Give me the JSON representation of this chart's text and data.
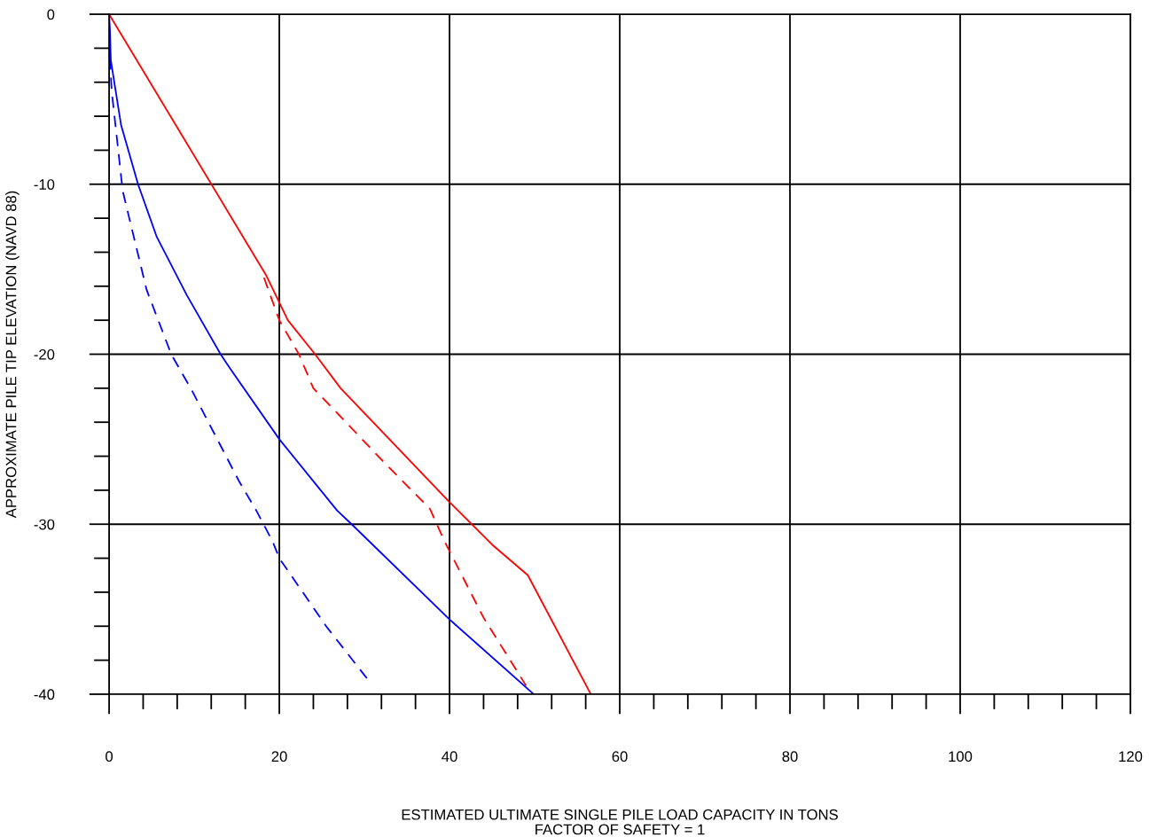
{
  "chart_data": {
    "type": "line",
    "xlabel": "ESTIMATED ULTIMATE SINGLE PILE LOAD CAPACITY IN TONS\nFACTOR OF SAFETY = 1",
    "ylabel": "APPROXIMATE PILE TIP ELEVATION (NAVD 88)",
    "xlim": [
      0,
      120
    ],
    "ylim": [
      -40,
      0
    ],
    "xticks": [
      0,
      {
        "value": 4,
        "label": null
      },
      {
        "value": 8,
        "label": null
      },
      {
        "value": 12,
        "label": null
      },
      {
        "value": 16,
        "label": null
      },
      20,
      {
        "value": 24,
        "label": null
      },
      {
        "value": 28,
        "label": null
      },
      {
        "value": 32,
        "label": null
      },
      {
        "value": 36,
        "label": null
      },
      40,
      {
        "value": 44,
        "label": null
      },
      {
        "value": 48,
        "label": null
      },
      {
        "value": 52,
        "label": null
      },
      {
        "value": 56,
        "label": null
      },
      60,
      {
        "value": 64,
        "label": null
      },
      {
        "value": 68,
        "label": null
      },
      {
        "value": 72,
        "label": null
      },
      {
        "value": 76,
        "label": null
      },
      80,
      {
        "value": 84,
        "label": null
      },
      {
        "value": 88,
        "label": null
      },
      {
        "value": 92,
        "label": null
      },
      {
        "value": 96,
        "label": null
      },
      100,
      {
        "value": 104,
        "label": null
      },
      {
        "value": 108,
        "label": null
      },
      {
        "value": 112,
        "label": null
      },
      {
        "value": 116,
        "label": null
      },
      120
    ],
    "yticks": [
      0,
      {
        "value": -2,
        "label": null
      },
      {
        "value": -4,
        "label": null
      },
      {
        "value": -6,
        "label": null
      },
      {
        "value": -8,
        "label": null
      },
      -10,
      {
        "value": -12,
        "label": null
      },
      {
        "value": -14,
        "label": null
      },
      {
        "value": -16,
        "label": null
      },
      {
        "value": -18,
        "label": null
      },
      -20,
      {
        "value": -22,
        "label": null
      },
      {
        "value": -24,
        "label": null
      },
      {
        "value": -26,
        "label": null
      },
      {
        "value": -28,
        "label": null
      },
      -30,
      {
        "value": -32,
        "label": null
      },
      {
        "value": -34,
        "label": null
      },
      {
        "value": -36,
        "label": null
      },
      {
        "value": -38,
        "label": null
      },
      -40
    ],
    "grid": true,
    "marker": "none",
    "series": [
      {
        "color": "#ff0000",
        "line_style": "solid",
        "x": [
          0,
          18.5,
          21,
          24.2,
          27.2,
          40,
          42.6,
          45,
          49.2,
          56.6
        ],
        "values": [
          0,
          -15.4,
          -18,
          -20,
          -22,
          -28.7,
          -30,
          -31.2,
          -33,
          -40
        ]
      },
      {
        "color": "#ff0000",
        "line_style": "dashed",
        "x": [
          18.2,
          20,
          22.3,
          24,
          26.5,
          32,
          37.7,
          39.4,
          44,
          49
        ],
        "values": [
          -15.5,
          -18,
          -20,
          -22,
          -23.3,
          -26.2,
          -29.1,
          -31,
          -35.5,
          -39.5
        ]
      },
      {
        "color": "#0000ff",
        "line_style": "solid",
        "x": [
          0,
          0.1,
          0.2,
          1.4,
          3.4,
          5.6,
          9.1,
          13.1,
          14.3,
          20,
          26.8,
          28.5,
          40,
          49.9
        ],
        "values": [
          0,
          -0.9,
          -2.7,
          -6.5,
          -10,
          -13.1,
          -16.5,
          -20,
          -20.9,
          -25,
          -29.2,
          -30,
          -35.6,
          -40
        ]
      },
      {
        "color": "#0000ff",
        "line_style": "dashed",
        "x": [
          0.1,
          0.3,
          1.6,
          4.4,
          7.3,
          9.8,
          15.3,
          17.3,
          19.2,
          20,
          25.5,
          30.5
        ],
        "values": [
          -2.6,
          -4.5,
          -10.4,
          -16.2,
          -20,
          -22.2,
          -27.5,
          -29.2,
          -31,
          -32,
          -36,
          -39.2
        ]
      }
    ]
  }
}
